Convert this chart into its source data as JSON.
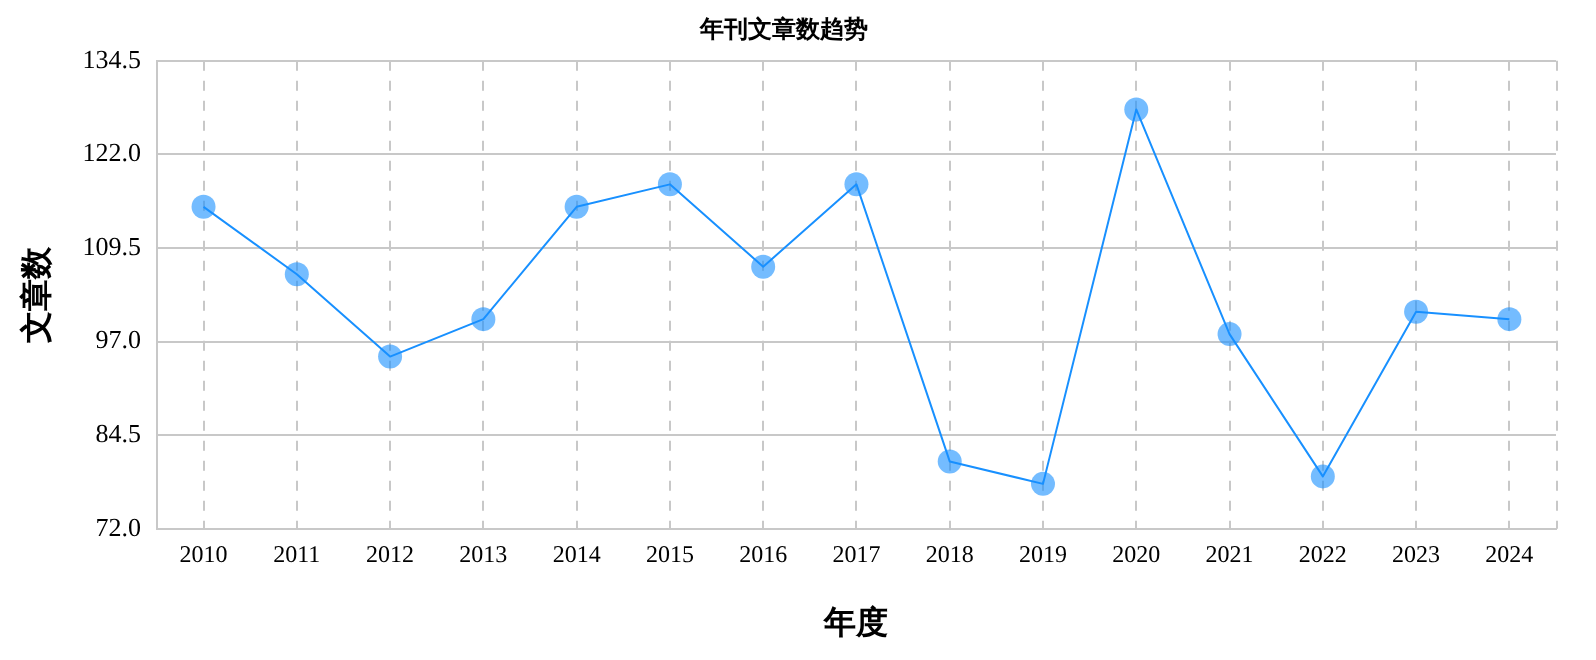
{
  "chart_data": {
    "type": "line",
    "title": "年刊文章数趋势",
    "xlabel": "年度",
    "ylabel": "文章数",
    "categories": [
      "2010",
      "2011",
      "2012",
      "2013",
      "2014",
      "2015",
      "2016",
      "2017",
      "2018",
      "2019",
      "2020",
      "2021",
      "2022",
      "2023",
      "2024"
    ],
    "series": [
      {
        "color": "#1890ff",
        "values": [
          115,
          106,
          95,
          100,
          115,
          118,
          107,
          118,
          81,
          78,
          128,
          98,
          79,
          101,
          100
        ]
      }
    ],
    "ylim": [
      72,
      134.5
    ],
    "yticks": [
      {
        "value": 72,
        "label": "72.0"
      },
      84.5,
      {
        "value": 97,
        "label": "97.0"
      },
      109.5,
      {
        "value": 122,
        "label": "122.0"
      },
      134.5
    ],
    "grid": true,
    "marker": "circle",
    "legend": false
  }
}
